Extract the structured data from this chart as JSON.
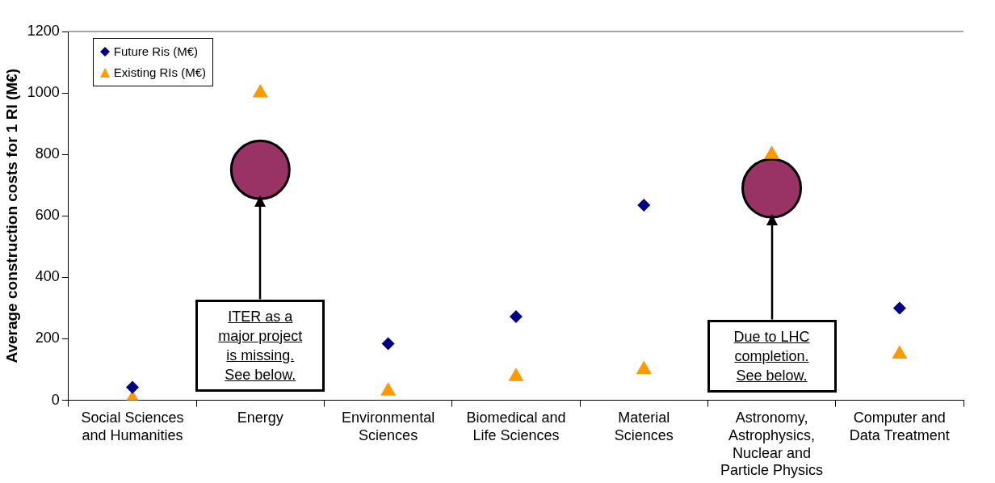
{
  "chart_data": {
    "type": "scatter",
    "ylabel": "Average construction costs for 1 RI (M€)",
    "categories": [
      "Social Sciences and Humanities",
      "Energy",
      "Environmental Sciences",
      "Biomedical and Life Sciences",
      "Material Sciences",
      "Astronomy, Astrophysics, Nuclear and Particle Physics",
      "Computer and Data Treatment"
    ],
    "series": [
      {
        "name": "Future Ris (M€)",
        "color": "#000080",
        "marker": "diamond",
        "values": [
          42,
          null,
          184,
          272,
          635,
          null,
          300
        ]
      },
      {
        "name": "Existing RIs (M€)",
        "color": "#ff9900",
        "marker": "triangle",
        "values": [
          5,
          1000,
          30,
          77,
          100,
          800,
          150
        ]
      },
      {
        "color": "#993366",
        "marker": "circle",
        "values": [
          null,
          750,
          null,
          null,
          null,
          690,
          null
        ]
      }
    ],
    "ylim": [
      0,
      1200
    ],
    "yticks": [
      0,
      200,
      400,
      600,
      800,
      1000,
      1200
    ],
    "grid": false,
    "legend": "top left",
    "annotations": [
      "ITER as a\nmajor project\nis missing.\nSee below.",
      "Due to LHC\ncompletion.\nSee below."
    ]
  }
}
